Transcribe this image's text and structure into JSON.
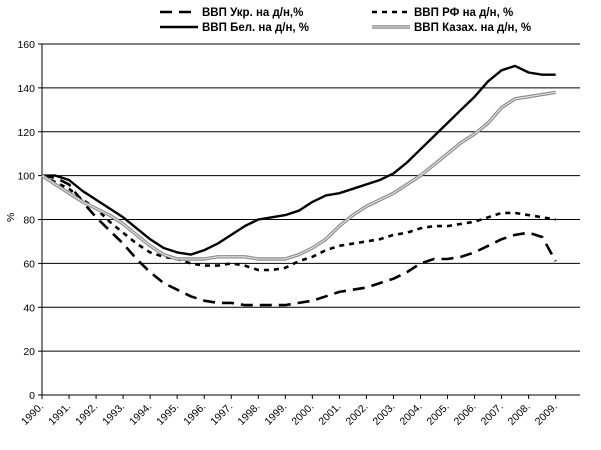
{
  "chart_data": {
    "type": "line",
    "ylabel": "%",
    "ylim": [
      0,
      160
    ],
    "yticks": [
      0,
      20,
      40,
      60,
      80,
      100,
      120,
      140,
      160
    ],
    "grid": "horizontal",
    "legend_position": "top",
    "x_tick_labels": [
      "1990.",
      "1991.",
      "1992.",
      "1993.",
      "1994.",
      "1995.",
      "1996.",
      "1997.",
      "1998.",
      "1999.",
      "2000.",
      "2001.",
      "2002.",
      "2003.",
      "2004.",
      "2005.",
      "2006.",
      "2007.",
      "2008.",
      "2009."
    ],
    "series": [
      {
        "name": "ВВП Укр. на д/н,%",
        "style": "long-dash",
        "color": "#000000",
        "x": [
          1990.0,
          1990.5,
          1991.0,
          1991.5,
          1992.0,
          1992.5,
          1993.0,
          1993.5,
          1994.0,
          1994.5,
          1995.0,
          1995.5,
          1996.0,
          1996.5,
          1997.0,
          1997.5,
          1998.0,
          1998.5,
          1999.0,
          1999.5,
          2000.0,
          2000.5,
          2001.0,
          2001.5,
          2002.0,
          2002.5,
          2003.0,
          2003.5,
          2004.0,
          2004.5,
          2005.0,
          2005.5,
          2006.0,
          2006.5,
          2007.0,
          2007.5,
          2008.0,
          2008.5,
          2009.0
        ],
        "y": [
          100,
          99,
          96,
          88,
          81,
          75,
          69,
          62,
          56,
          51,
          48,
          45,
          43,
          42,
          42,
          41,
          41,
          41,
          41,
          42,
          43,
          45,
          47,
          48,
          49,
          51,
          53,
          56,
          60,
          62,
          62,
          63,
          65,
          68,
          71,
          73,
          74,
          72,
          61
        ]
      },
      {
        "name": "ВВП Бел. на д/н, %",
        "style": "solid",
        "color": "#000000",
        "x": [
          1990.0,
          1990.5,
          1991.0,
          1991.5,
          1992.0,
          1992.5,
          1993.0,
          1993.5,
          1994.0,
          1994.5,
          1995.0,
          1995.5,
          1996.0,
          1996.5,
          1997.0,
          1997.5,
          1998.0,
          1998.5,
          1999.0,
          1999.5,
          2000.0,
          2000.5,
          2001.0,
          2001.5,
          2002.0,
          2002.5,
          2003.0,
          2003.5,
          2004.0,
          2004.5,
          2005.0,
          2005.5,
          2006.0,
          2006.5,
          2007.0,
          2007.5,
          2008.0,
          2008.5,
          2009.0
        ],
        "y": [
          100,
          100,
          98,
          93,
          89,
          85,
          81,
          76,
          71,
          67,
          65,
          64,
          66,
          69,
          73,
          77,
          80,
          81,
          82,
          84,
          88,
          91,
          92,
          94,
          96,
          98,
          101,
          106,
          112,
          118,
          124,
          130,
          136,
          143,
          148,
          150,
          147,
          146,
          146
        ]
      },
      {
        "name": "ВВП РФ на д/н, %",
        "style": "short-dash",
        "color": "#000000",
        "x": [
          1990.0,
          1990.5,
          1991.0,
          1991.5,
          1992.0,
          1992.5,
          1993.0,
          1993.5,
          1994.0,
          1994.5,
          1995.0,
          1995.5,
          1996.0,
          1996.5,
          1997.0,
          1997.5,
          1998.0,
          1998.5,
          1999.0,
          1999.5,
          2000.0,
          2000.5,
          2001.0,
          2001.5,
          2002.0,
          2002.5,
          2003.0,
          2003.5,
          2004.0,
          2004.5,
          2005.0,
          2005.5,
          2006.0,
          2006.5,
          2007.0,
          2007.5,
          2008.0,
          2008.5,
          2009.0
        ],
        "y": [
          100,
          97,
          94,
          89,
          85,
          79,
          74,
          69,
          65,
          63,
          62,
          60,
          59,
          59,
          60,
          59,
          57,
          57,
          58,
          61,
          63,
          66,
          68,
          69,
          70,
          71,
          73,
          74,
          76,
          77,
          77,
          78,
          79,
          81,
          83,
          83,
          82,
          81,
          80
        ]
      },
      {
        "name": "ВВП Казах. на д/н, %",
        "style": "gray-double",
        "color": "#9a9a9a",
        "x": [
          1990.0,
          1990.5,
          1991.0,
          1991.5,
          1992.0,
          1992.5,
          1993.0,
          1993.5,
          1994.0,
          1994.5,
          1995.0,
          1995.5,
          1996.0,
          1996.5,
          1997.0,
          1997.5,
          1998.0,
          1998.5,
          1999.0,
          1999.5,
          2000.0,
          2000.5,
          2001.0,
          2001.5,
          2002.0,
          2002.5,
          2003.0,
          2003.5,
          2004.0,
          2004.5,
          2005.0,
          2005.5,
          2006.0,
          2006.5,
          2007.0,
          2007.5,
          2008.0,
          2008.5,
          2009.0
        ],
        "y": [
          100,
          96,
          92,
          88,
          85,
          82,
          78,
          73,
          68,
          64,
          62,
          62,
          62,
          63,
          63,
          63,
          62,
          62,
          62,
          64,
          67,
          71,
          77,
          82,
          86,
          89,
          92,
          96,
          100,
          105,
          110,
          115,
          119,
          124,
          131,
          135,
          136,
          137,
          138
        ]
      }
    ]
  }
}
